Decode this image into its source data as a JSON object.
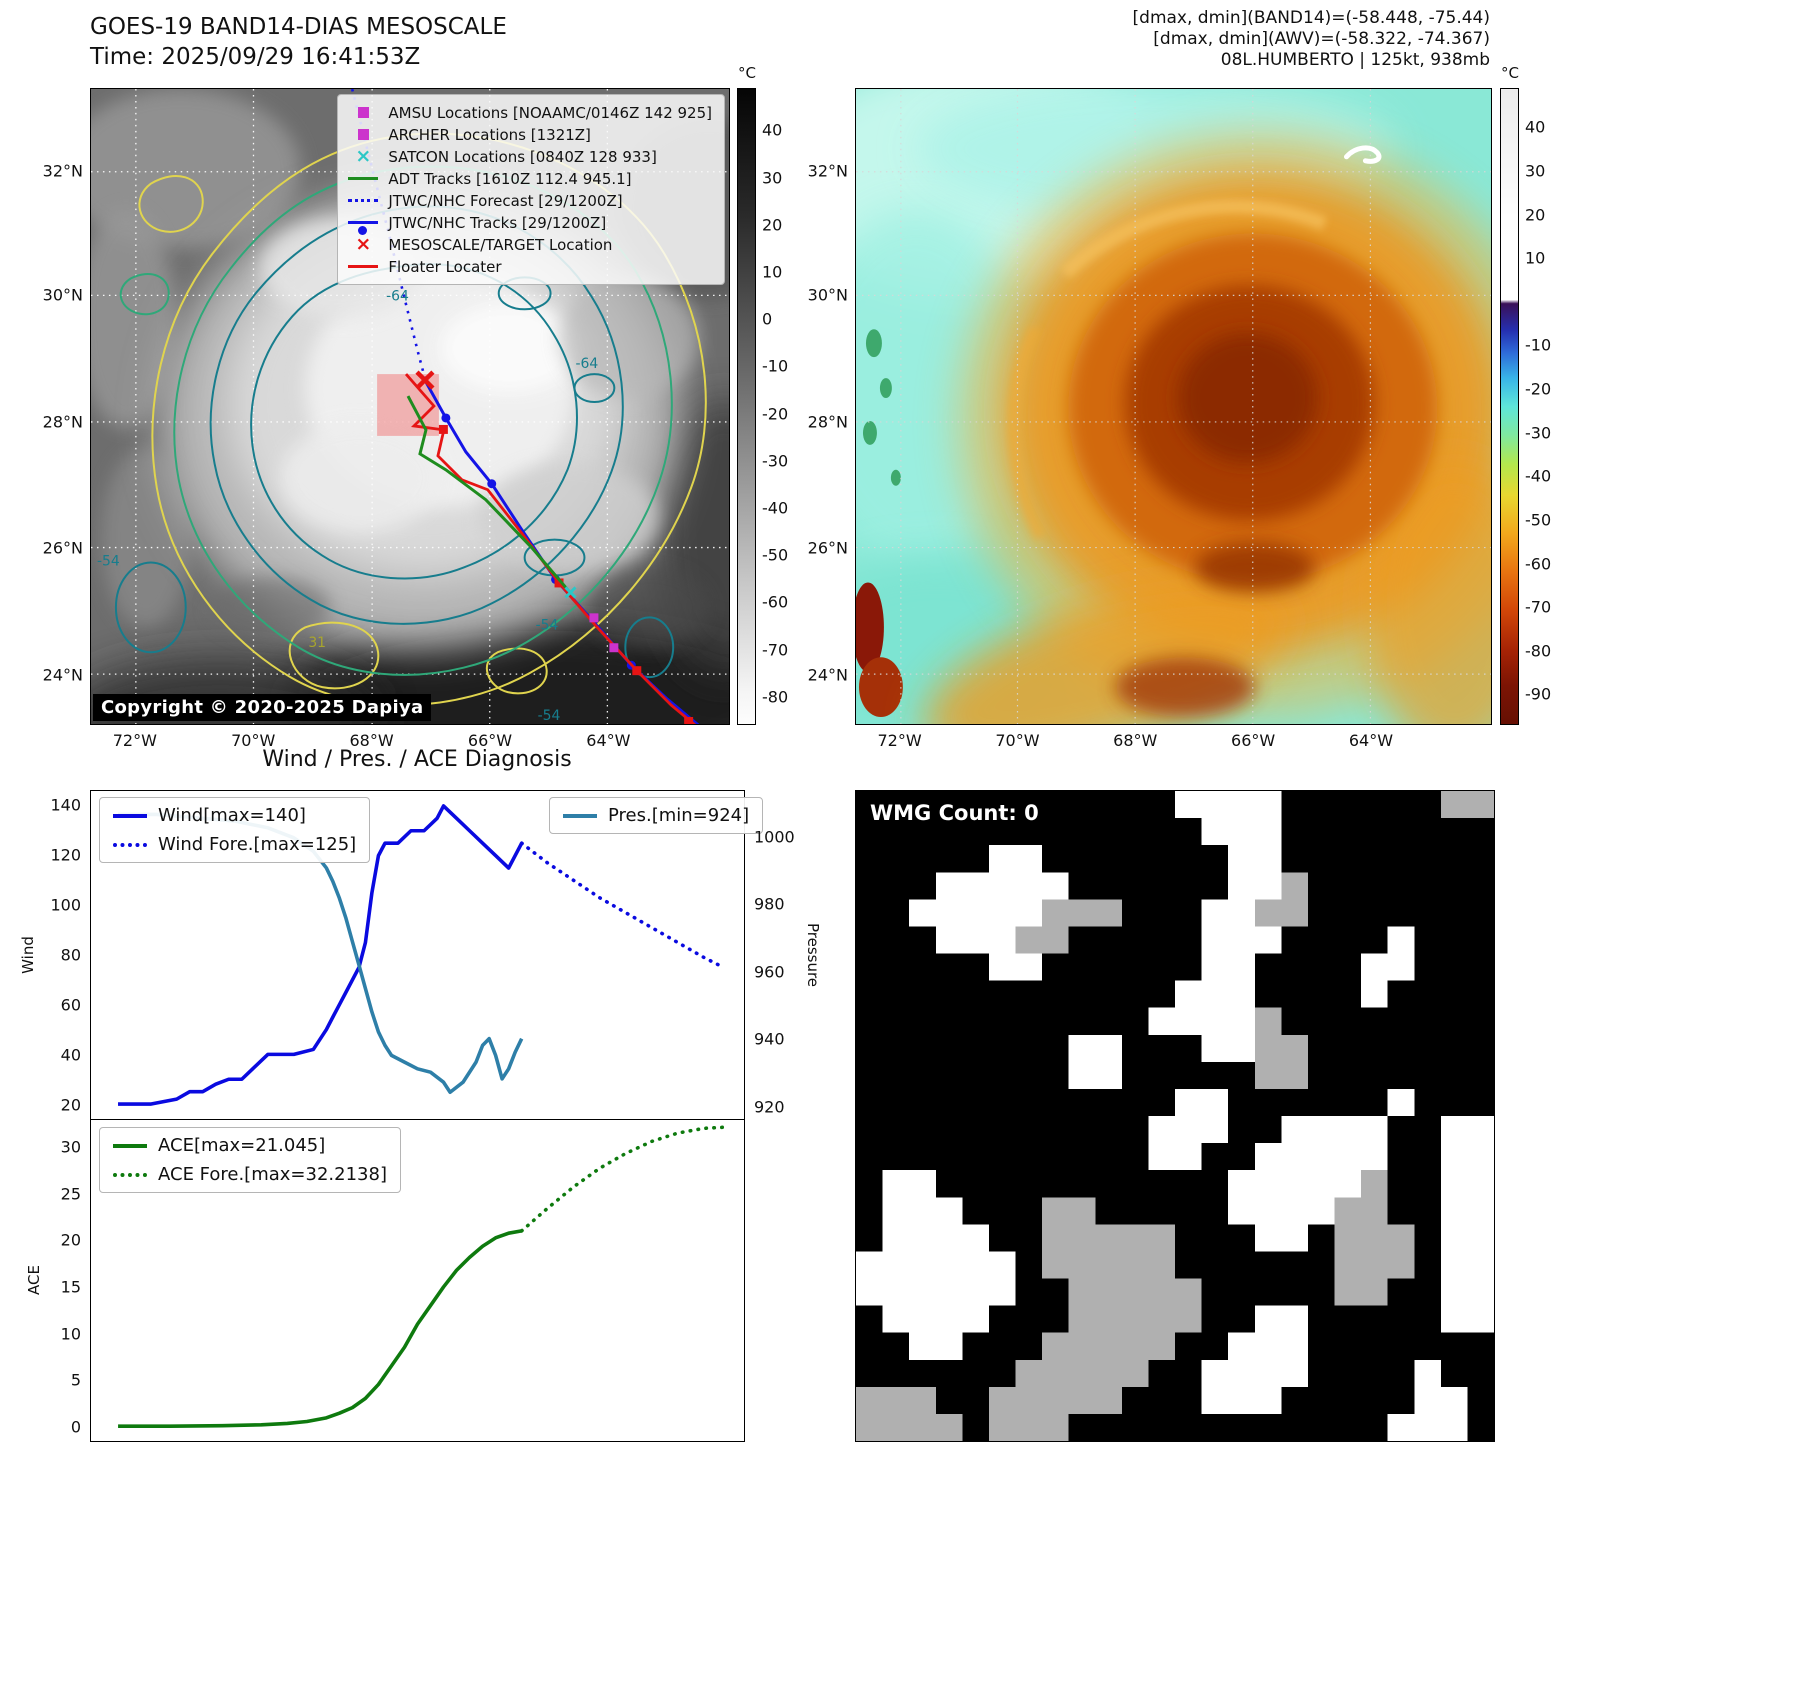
{
  "header_left": {
    "title": "GOES-19 BAND14-DIAS MESOSCALE",
    "time": "Time: 2025/09/29 16:41:53Z"
  },
  "header_right": {
    "line1": "[dmax, dmin](BAND14)=(-58.448, -75.44)",
    "line2": "[dmax, dmin](AWV)=(-58.322, -74.367)",
    "line3": "08L.HUMBERTO | 125kt, 938mb"
  },
  "goes_panel": {
    "legend": [
      {
        "label": "AMSU Locations [NOAAMC/0146Z 142 925]",
        "marker": "square",
        "color": "#cc33cc"
      },
      {
        "label": "ARCHER Locations [1321Z]",
        "marker": "square",
        "color": "#cc33cc"
      },
      {
        "label": "SATCON Locations [0840Z 128 933]",
        "marker": "x",
        "color": "#2cc7c7"
      },
      {
        "label": "ADT Tracks [1610Z 112.4 945.1]",
        "marker": "line",
        "color": "#1e8c1e"
      },
      {
        "label": "JTWC/NHC Forecast [29/1200Z]",
        "marker": "dotted-line",
        "color": "#1414e6"
      },
      {
        "label": "JTWC/NHC Tracks [29/1200Z]",
        "marker": "line-dot",
        "color": "#1414e6"
      },
      {
        "label": "MESOSCALE/TARGET Location",
        "marker": "x",
        "color": "#e61414"
      },
      {
        "label": "Floater Locater",
        "marker": "line",
        "color": "#e61414"
      }
    ],
    "lat_labels": [
      "32°N",
      "30°N",
      "28°N",
      "26°N",
      "24°N"
    ],
    "lon_labels": [
      "72°W",
      "70°W",
      "68°W",
      "66°W",
      "64°W"
    ],
    "colorbar": {
      "unit": "°C",
      "ticks": [
        40,
        30,
        20,
        10,
        0,
        -10,
        -20,
        -30,
        -40,
        -50,
        -60,
        -70,
        -80
      ]
    },
    "copyright": "Copyright © 2020-2025 Dapiya",
    "contour_labels": [
      "-64",
      "-64",
      "-54",
      "-54",
      "31",
      "-54"
    ]
  },
  "awv_panel": {
    "lat_labels": [
      "32°N",
      "30°N",
      "28°N",
      "26°N",
      "24°N"
    ],
    "lon_labels": [
      "72°W",
      "70°W",
      "68°W",
      "66°W",
      "64°W"
    ],
    "colorbar": {
      "unit": "°C",
      "ticks": [
        40,
        30,
        20,
        10,
        -10,
        -20,
        -30,
        -40,
        -50,
        -60,
        -70,
        -80,
        -90
      ]
    }
  },
  "wmg_panel": {
    "label": "WMG Count: 0",
    "colors": {
      "b": "#000000",
      "g": "#b0b0b0",
      "w": "#ffffff"
    },
    "grid": [
      "bbbbbbbbbbbbwwwwbbbbbbgg",
      "bbbbbbbbbbbbbwwwbbbbbbbb",
      "bbbbbwwbbbbbbbwwbbbbbbbb",
      "bbbwwwwwbbbbbbwwgbbbbbbb",
      "bbwwwwwgggbbbwwggbbbbbbb",
      "bbbwwwggbbbbbwwwbbbbwbbb",
      "bbbbbwwbbbbbbwwbbbbwwbbb",
      "bbbbbbbbbbbbwwwbbbbwbbbb",
      "bbbbbbbbbbbwwwwgbbbbbbbb",
      "bbbbbbbbwwbbbwwggbbbbbbb",
      "bbbbbbbbwwbbbbbggbbbbbbb",
      "bbbbbbbbbbbbwwbbbbbbwbbb",
      "bbbbbbbbbbbwwwbbwwwwbbww",
      "bbbbbbbbbbbwwbbwwwwwbbww",
      "bwwbbbbbbbbbbbwwwwwgbbww",
      "bwwwbbbggbbbbbwwwwggbbww",
      "bwwwwbbgggggbbbwwbgggbww",
      "wwwwwwbgggggbbbbbbgggbww",
      "wwwwwwbbgggggbbbbbggbbww",
      "bwwwwbbbgggggbbwwbbbbbww",
      "bbwwbbbgggggbbwwwbbbbbbb",
      "bbbbbbgggggbbwwwwbbbbwbb",
      "gggbbgggggbbbwwwbbbbbwwb",
      "ggggbgggbbbbbbbbbbbbwwwb"
    ]
  },
  "chart_data": [
    {
      "type": "line",
      "title": "Wind / Pres. / ACE Diagnosis",
      "ylabel_left": "Wind",
      "ylabel_right": "Pressure",
      "yticks_left": [
        20,
        40,
        60,
        80,
        100,
        120,
        140
      ],
      "ylim_left": [
        14,
        146
      ],
      "yticks_right": [
        920,
        940,
        960,
        980,
        1000
      ],
      "ylim_right": [
        916,
        1014
      ],
      "xlim": [
        0,
        100
      ],
      "grid": false,
      "series": [
        {
          "name": "Wind",
          "legend": "Wind[max=140]",
          "color": "#0a0ae0",
          "style": "solid",
          "axis": "left",
          "x": [
            4,
            9,
            13,
            15,
            17,
            19,
            21,
            23,
            25,
            27,
            31,
            34,
            36,
            37,
            38,
            39,
            41,
            42,
            43,
            44,
            45,
            47,
            49,
            51,
            53,
            54,
            56,
            58,
            60,
            62,
            64,
            66
          ],
          "y": [
            20,
            20,
            22,
            25,
            25,
            28,
            30,
            30,
            35,
            40,
            40,
            42,
            50,
            55,
            60,
            65,
            75,
            85,
            105,
            120,
            125,
            125,
            130,
            130,
            135,
            140,
            135,
            130,
            125,
            120,
            115,
            125
          ]
        },
        {
          "name": "Wind Forecast",
          "legend": "Wind Fore.[max=125]",
          "color": "#0a0ae0",
          "style": "dotted",
          "axis": "left",
          "x": [
            66,
            70,
            74,
            78,
            82,
            86,
            90,
            94,
            97
          ],
          "y": [
            125,
            117,
            110,
            103,
            97,
            91,
            85,
            79,
            75
          ]
        },
        {
          "name": "Pressure",
          "legend": "Pres.[min=924]",
          "color": "#2e7fa8",
          "style": "solid",
          "axis": "right",
          "x": [
            4,
            10,
            16,
            22,
            27,
            31,
            34,
            36,
            37,
            38,
            39,
            40,
            41,
            42,
            43,
            44,
            45,
            46,
            48,
            50,
            52,
            54,
            55,
            57,
            59,
            60,
            61,
            62,
            63,
            64,
            65,
            66
          ],
          "y": [
            1007,
            1007,
            1006,
            1005,
            1003,
            1000,
            996,
            991,
            987,
            982,
            976,
            969,
            962,
            955,
            948,
            942,
            938,
            935,
            933,
            931,
            930,
            927,
            924,
            927,
            933,
            938,
            940,
            935,
            928,
            931,
            936,
            940
          ]
        }
      ]
    },
    {
      "type": "line",
      "ylabel_left": "ACE",
      "yticks_left": [
        0,
        5,
        10,
        15,
        20,
        25,
        30
      ],
      "ylim_left": [
        -1.6,
        33
      ],
      "xlim": [
        0,
        100
      ],
      "grid": false,
      "series": [
        {
          "name": "ACE",
          "legend": "ACE[max=21.045]",
          "color": "#0e7a0e",
          "style": "solid",
          "axis": "left",
          "x": [
            4,
            12,
            20,
            26,
            30,
            33,
            36,
            38,
            40,
            42,
            44,
            46,
            48,
            50,
            52,
            54,
            56,
            58,
            60,
            62,
            64,
            66
          ],
          "y": [
            0,
            0,
            0.05,
            0.15,
            0.3,
            0.5,
            0.9,
            1.4,
            2,
            3,
            4.5,
            6.5,
            8.5,
            11,
            13,
            15,
            16.8,
            18.2,
            19.4,
            20.3,
            20.8,
            21.045
          ]
        },
        {
          "name": "ACE Forecast",
          "legend": "ACE Fore.[max=32.2138]",
          "color": "#0e7a0e",
          "style": "dotted",
          "axis": "left",
          "x": [
            66,
            70,
            74,
            78,
            82,
            86,
            90,
            94,
            97
          ],
          "y": [
            21.045,
            23.5,
            25.8,
            27.8,
            29.4,
            30.7,
            31.6,
            32.1,
            32.2138
          ]
        }
      ]
    }
  ]
}
